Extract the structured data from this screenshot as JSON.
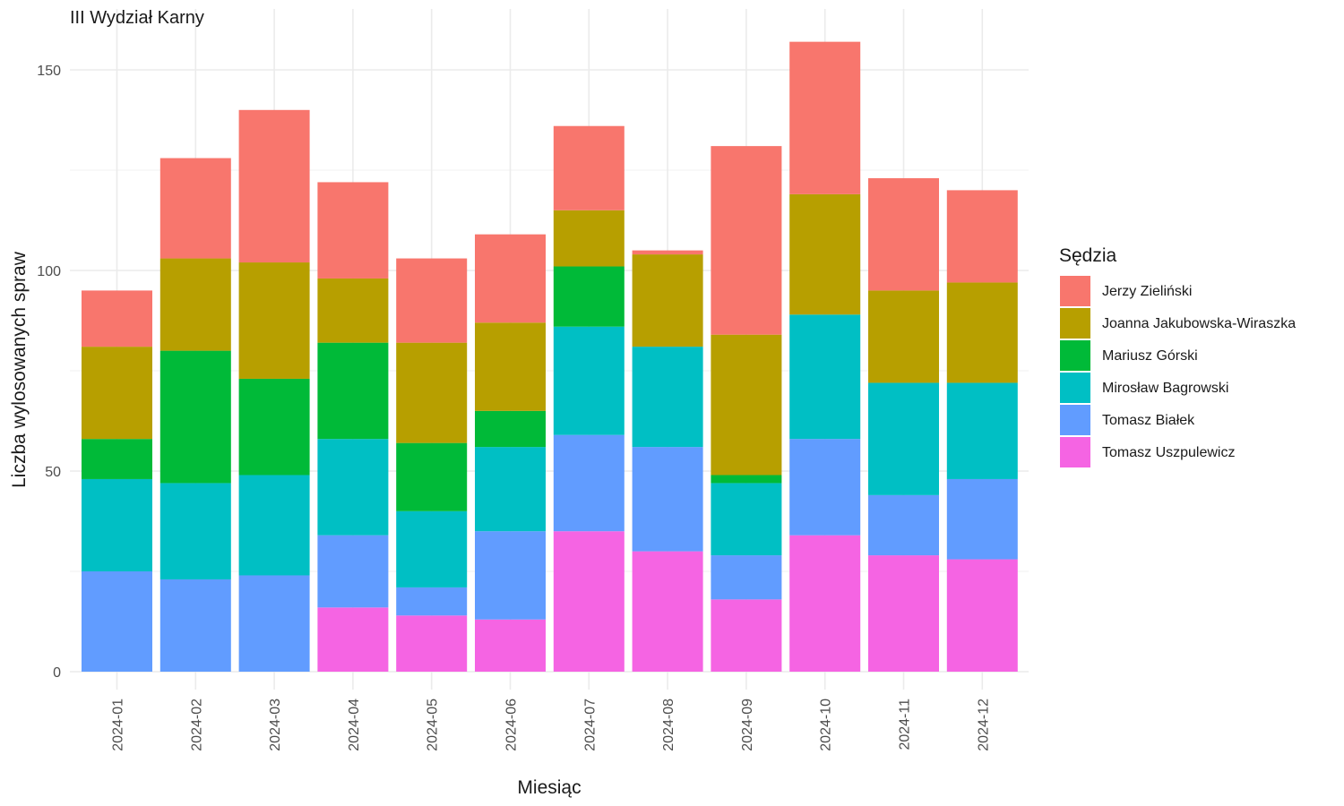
{
  "chart_data": {
    "type": "bar",
    "stacked": true,
    "title": "III Wydział Karny",
    "xlabel": "Miesiąc",
    "ylabel": "Liczba wylosowanych spraw",
    "ylim": [
      0,
      160
    ],
    "yticks": [
      0,
      50,
      100,
      150
    ],
    "grid": true,
    "legend_title": "Sędzia",
    "legend_position": "right",
    "categories": [
      "2024-01",
      "2024-02",
      "2024-03",
      "2024-04",
      "2024-05",
      "2024-06",
      "2024-07",
      "2024-08",
      "2024-09",
      "2024-10",
      "2024-11",
      "2024-12"
    ],
    "series": [
      {
        "name": "Tomasz Uszpulewicz",
        "color": "#F564E3",
        "values": [
          0,
          0,
          0,
          16,
          14,
          13,
          35,
          30,
          18,
          34,
          29,
          28
        ]
      },
      {
        "name": "Tomasz Białek",
        "color": "#619CFF",
        "values": [
          25,
          23,
          24,
          18,
          7,
          22,
          24,
          26,
          11,
          24,
          15,
          20
        ]
      },
      {
        "name": "Mirosław Bagrowski",
        "color": "#00BFC4",
        "values": [
          23,
          24,
          25,
          24,
          19,
          21,
          27,
          25,
          18,
          31,
          28,
          24
        ]
      },
      {
        "name": "Mariusz Górski",
        "color": "#00BA38",
        "values": [
          10,
          33,
          24,
          24,
          17,
          9,
          15,
          0,
          2,
          0,
          0,
          0
        ]
      },
      {
        "name": "Joanna Jakubowska-Wiraszka",
        "color": "#B79F00",
        "values": [
          23,
          23,
          29,
          16,
          25,
          22,
          14,
          23,
          35,
          30,
          23,
          25
        ]
      },
      {
        "name": "Jerzy Zieliński",
        "color": "#F8766D",
        "values": [
          14,
          25,
          38,
          24,
          21,
          22,
          21,
          1,
          47,
          38,
          28,
          23
        ]
      }
    ],
    "legend_order": [
      "Jerzy Zieliński",
      "Joanna Jakubowska-Wiraszka",
      "Mariusz Górski",
      "Mirosław Bagrowski",
      "Tomasz Białek",
      "Tomasz Uszpulewicz"
    ]
  }
}
